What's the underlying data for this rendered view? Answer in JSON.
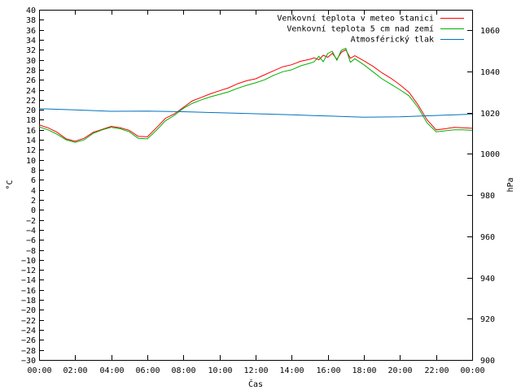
{
  "chart_data": {
    "type": "line",
    "xlabel": "Čas",
    "ylabel_left": "°C",
    "ylabel_right": "hPa",
    "x_ticks": [
      "00:00",
      "02:00",
      "04:00",
      "06:00",
      "08:00",
      "10:00",
      "12:00",
      "14:00",
      "16:00",
      "18:00",
      "20:00",
      "22:00",
      "00:00"
    ],
    "xlim_hours": [
      0,
      24
    ],
    "ylim_left": [
      -30,
      40
    ],
    "ylim_right": [
      900,
      1070
    ],
    "y_left_ticks": [
      40,
      38,
      36,
      34,
      32,
      30,
      28,
      26,
      24,
      22,
      20,
      18,
      16,
      14,
      12,
      10,
      8,
      6,
      4,
      2,
      0,
      -2,
      -4,
      -6,
      -8,
      -10,
      -12,
      -14,
      -16,
      -18,
      -20,
      -22,
      -24,
      -26,
      -28,
      -30
    ],
    "y_right_ticks": [
      1060,
      1040,
      1020,
      1000,
      980,
      960,
      940,
      920,
      900
    ],
    "grid": false,
    "legend_position": "top-right",
    "series": [
      {
        "name": "Venkovní teplota v meteo stanici",
        "color": "#ff0000",
        "axis": "left",
        "x": [
          0,
          0.5,
          1,
          1.5,
          2,
          2.5,
          3,
          3.5,
          4,
          4.5,
          5,
          5.5,
          6,
          6.5,
          7,
          7.5,
          8,
          8.5,
          9,
          9.5,
          10,
          10.5,
          11,
          11.5,
          12,
          12.5,
          13,
          13.5,
          14,
          14.5,
          15,
          15.25,
          15.5,
          15.75,
          16,
          16.25,
          16.5,
          16.75,
          17,
          17.25,
          17.5,
          18,
          18.5,
          19,
          19.5,
          20,
          20.5,
          21,
          21.5,
          22,
          22.5,
          23,
          23.5,
          24
        ],
        "values": [
          17,
          16.4,
          15.5,
          14.2,
          13.7,
          14.3,
          15.5,
          16.1,
          16.7,
          16.4,
          15.9,
          14.7,
          14.6,
          16.4,
          18.3,
          19.2,
          20.5,
          21.8,
          22.5,
          23.2,
          23.8,
          24.4,
          25.2,
          25.8,
          26.2,
          27.0,
          27.8,
          28.6,
          29.0,
          29.7,
          30.1,
          30.4,
          30.0,
          30.9,
          30.5,
          31.3,
          30.1,
          31.5,
          32.0,
          30.3,
          30.8,
          29.8,
          28.7,
          27.4,
          26.3,
          25.0,
          23.5,
          21.0,
          18.0,
          16.0,
          16.2,
          16.5,
          16.4,
          16.3
        ]
      },
      {
        "name": "Venkovní teplota 5 cm nad zemí",
        "color": "#00b000",
        "axis": "left",
        "x": [
          0,
          0.5,
          1,
          1.5,
          2,
          2.5,
          3,
          3.5,
          4,
          4.5,
          5,
          5.5,
          6,
          6.5,
          7,
          7.5,
          8,
          8.5,
          9,
          9.5,
          10,
          10.5,
          11,
          11.5,
          12,
          12.5,
          13,
          13.5,
          14,
          14.5,
          15,
          15.25,
          15.5,
          15.75,
          16,
          16.25,
          16.5,
          16.75,
          17,
          17.25,
          17.5,
          18,
          18.5,
          19,
          19.5,
          20,
          20.5,
          21,
          21.5,
          22,
          22.5,
          23,
          23.5,
          24
        ],
        "values": [
          16.6,
          16.0,
          15.1,
          14.0,
          13.5,
          14.0,
          15.3,
          16.0,
          16.5,
          16.2,
          15.6,
          14.3,
          14.2,
          15.9,
          17.8,
          18.9,
          20.3,
          21.3,
          22.0,
          22.6,
          23.1,
          23.6,
          24.3,
          24.9,
          25.4,
          26.0,
          26.9,
          27.6,
          28.0,
          28.8,
          29.3,
          29.6,
          30.7,
          29.6,
          31.3,
          31.7,
          29.9,
          31.9,
          32.3,
          29.5,
          30.2,
          29.0,
          27.6,
          26.2,
          25.1,
          24.0,
          22.8,
          20.5,
          17.4,
          15.6,
          15.8,
          16.0,
          16.0,
          15.9
        ]
      },
      {
        "name": "Atmosférický tlak",
        "color": "#0072bd",
        "axis": "right",
        "x": [
          0,
          2,
          4,
          6,
          8,
          10,
          12,
          14,
          16,
          18,
          20,
          22,
          24
        ],
        "values": [
          1022.0,
          1021.4,
          1020.7,
          1020.8,
          1020.5,
          1020.0,
          1019.5,
          1019.0,
          1018.4,
          1017.8,
          1018.0,
          1018.7,
          1019.3
        ]
      }
    ]
  }
}
